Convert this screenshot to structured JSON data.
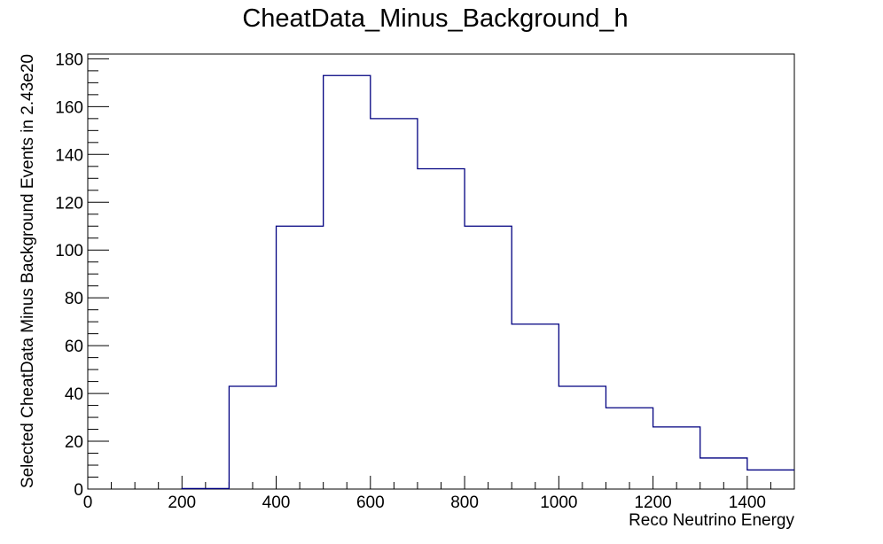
{
  "chart_data": {
    "type": "histogram",
    "title": "CheatData_Minus_Background_h",
    "xlabel": "Reco Neutrino Energy",
    "ylabel": "Selected CheatData Minus Background Events in 2.43e20",
    "xlim": [
      0,
      1500
    ],
    "ylim": [
      0,
      182
    ],
    "x_ticks": [
      0,
      200,
      400,
      600,
      800,
      1000,
      1200,
      1400
    ],
    "y_ticks": [
      0,
      20,
      40,
      60,
      80,
      100,
      120,
      140,
      160,
      180
    ],
    "bin_edges": [
      200,
      300,
      400,
      500,
      600,
      700,
      800,
      900,
      1000,
      1100,
      1200,
      1300,
      1400,
      1500
    ],
    "values": [
      0.2,
      43,
      110,
      173,
      155,
      134,
      110,
      69,
      43,
      34,
      26,
      13,
      8
    ],
    "grid": false,
    "line_color": "#000080"
  }
}
